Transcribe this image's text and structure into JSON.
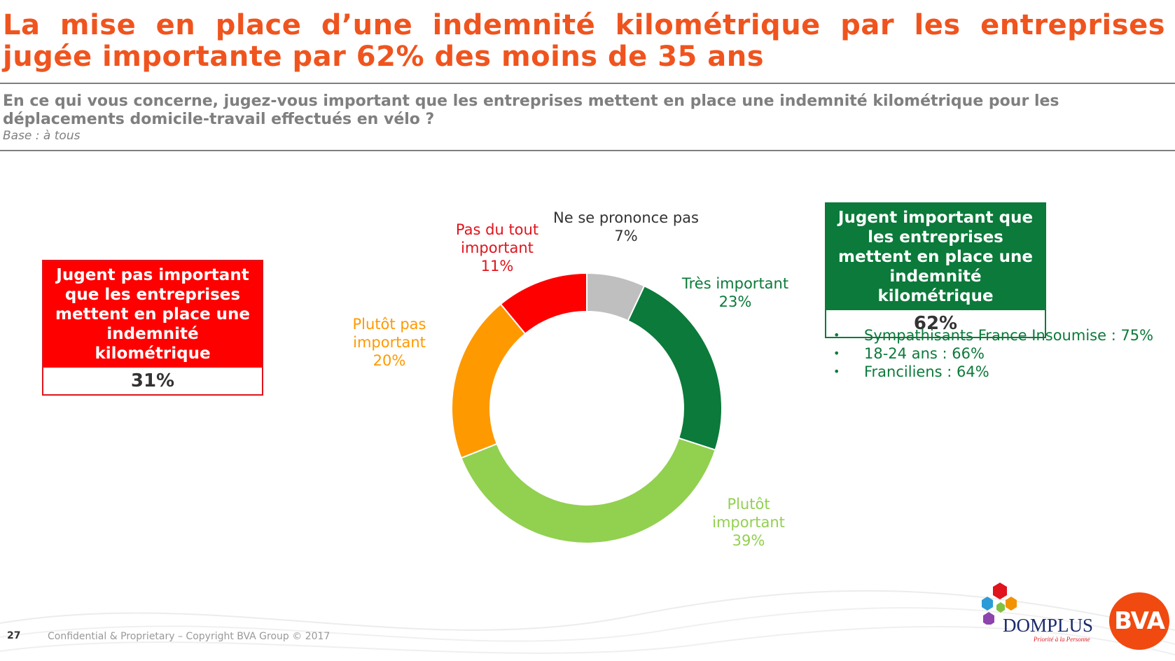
{
  "title": "La mise en place d’une indemnité kilométrique par les entreprises jugée importante par 62% des moins de 35 ans",
  "question": "En ce qui vous concerne, jugez-vous important que les entreprises mettent en place une indemnité kilométrique pour les déplacements domicile-travail effectués en vélo ?",
  "base": "Base : à tous",
  "negative_box": {
    "label": "Jugent pas important que les entreprises mettent en place une indemnité kilométrique",
    "value": "31%"
  },
  "positive_box": {
    "label": "Jugent important que les entreprises mettent en place une indemnité kilométrique",
    "value": "62%"
  },
  "bullets": [
    "Sympathisants France Insoumise : 75%",
    "18-24 ans : 66%",
    "Franciliens : 64%"
  ],
  "bullet_marker": "•",
  "footer": {
    "page_number": "27",
    "copyright": "Confidential & Proprietary – Copyright BVA Group © 2017"
  },
  "logos": {
    "domplus": "DOMPLUS",
    "domplus_tagline": "Priorité à la Personne",
    "bva": "BVA"
  },
  "chart_data": {
    "type": "pie",
    "donut": true,
    "categories": [
      "Ne se prononce pas",
      "Très important",
      "Plutôt important",
      "Plutôt pas important",
      "Pas du tout important"
    ],
    "values": [
      7,
      23,
      39,
      20,
      11
    ],
    "value_labels": [
      "7%",
      "23%",
      "39%",
      "20%",
      "11%"
    ],
    "colors": [
      "#bfbfbf",
      "#0b7a3a",
      "#92d050",
      "#ff9900",
      "#ff0000"
    ],
    "label_colors": [
      "#333333",
      "#0b7a3a",
      "#92d050",
      "#ff9900",
      "#e0141c"
    ],
    "start": "top, clockwise"
  }
}
